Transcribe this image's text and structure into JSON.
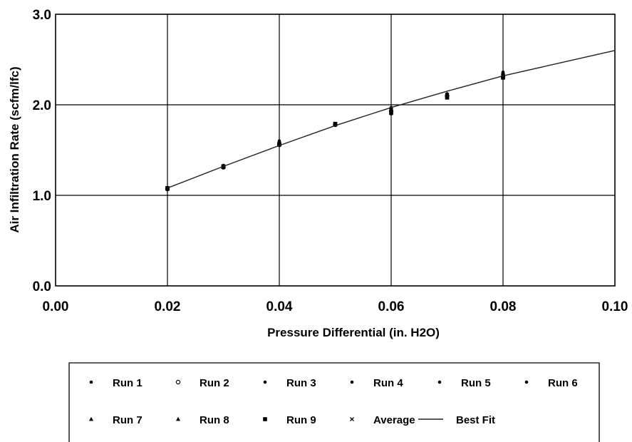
{
  "chart_data": {
    "type": "scatter",
    "title": "",
    "xlabel": "Pressure Differential (in. H2O)",
    "ylabel": "Air Infiltration Rate (scfm/lfc)",
    "xlim": [
      0.0,
      0.1
    ],
    "ylim": [
      0.0,
      3.0
    ],
    "x_ticks": [
      "0.00",
      "0.02",
      "0.04",
      "0.06",
      "0.08",
      "0.10"
    ],
    "y_ticks": [
      "0.0",
      "1.0",
      "2.0",
      "3.0"
    ],
    "grid": true,
    "legend_position": "bottom",
    "series": [
      {
        "name": "Run 1",
        "marker": "dot",
        "x": [
          0.02,
          0.03,
          0.04,
          0.05,
          0.06,
          0.07,
          0.08
        ],
        "y": [
          1.08,
          1.32,
          1.58,
          1.79,
          1.95,
          2.11,
          2.33
        ]
      },
      {
        "name": "Run 2",
        "marker": "circle",
        "x": [
          0.02,
          0.03,
          0.04,
          0.05,
          0.06,
          0.07,
          0.08
        ],
        "y": [
          1.07,
          1.31,
          1.56,
          1.78,
          1.93,
          2.1,
          2.31
        ]
      },
      {
        "name": "Run 3",
        "marker": "dot",
        "x": [
          0.02,
          0.03,
          0.04,
          0.05,
          0.06,
          0.07,
          0.08
        ],
        "y": [
          1.08,
          1.33,
          1.6,
          1.79,
          1.97,
          2.12,
          2.36
        ]
      },
      {
        "name": "Run 4",
        "marker": "dot",
        "x": [
          0.02,
          0.03,
          0.04,
          0.05,
          0.06,
          0.07,
          0.08
        ],
        "y": [
          1.07,
          1.31,
          1.55,
          1.78,
          1.9,
          2.09,
          2.31
        ]
      },
      {
        "name": "Run 5",
        "marker": "dot",
        "x": [
          0.02,
          0.03,
          0.04,
          0.05,
          0.06,
          0.07,
          0.08
        ],
        "y": [
          1.08,
          1.32,
          1.58,
          1.79,
          1.96,
          2.12,
          2.35
        ]
      },
      {
        "name": "Run 6",
        "marker": "dot",
        "x": [
          0.02,
          0.03,
          0.04,
          0.05,
          0.06,
          0.07,
          0.08
        ],
        "y": [
          1.08,
          1.32,
          1.57,
          1.78,
          1.94,
          2.11,
          2.33
        ]
      },
      {
        "name": "Run 7",
        "marker": "triangle",
        "x": [
          0.02,
          0.03,
          0.04,
          0.05,
          0.06,
          0.07,
          0.08
        ],
        "y": [
          1.08,
          1.32,
          1.59,
          1.79,
          1.95,
          2.12,
          2.35
        ]
      },
      {
        "name": "Run 8",
        "marker": "triangle",
        "x": [
          0.02,
          0.03,
          0.04,
          0.05,
          0.06,
          0.07,
          0.08
        ],
        "y": [
          1.07,
          1.31,
          1.57,
          1.78,
          1.92,
          2.1,
          2.32
        ]
      },
      {
        "name": "Run 9",
        "marker": "square",
        "x": [
          0.02,
          0.03,
          0.04,
          0.05,
          0.06,
          0.07,
          0.08
        ],
        "y": [
          1.08,
          1.32,
          1.56,
          1.79,
          1.91,
          2.08,
          2.3
        ]
      },
      {
        "name": "Average",
        "marker": "x",
        "x": [
          0.02,
          0.03,
          0.04,
          0.05,
          0.06,
          0.07,
          0.08
        ],
        "y": [
          1.08,
          1.32,
          1.57,
          1.79,
          1.94,
          2.11,
          2.33
        ]
      },
      {
        "name": "Best Fit",
        "type": "line",
        "x": [
          0.02,
          0.03,
          0.04,
          0.05,
          0.06,
          0.07,
          0.08,
          0.09,
          0.1
        ],
        "y": [
          1.08,
          1.32,
          1.55,
          1.77,
          1.97,
          2.15,
          2.32,
          2.46,
          2.6
        ]
      }
    ]
  }
}
